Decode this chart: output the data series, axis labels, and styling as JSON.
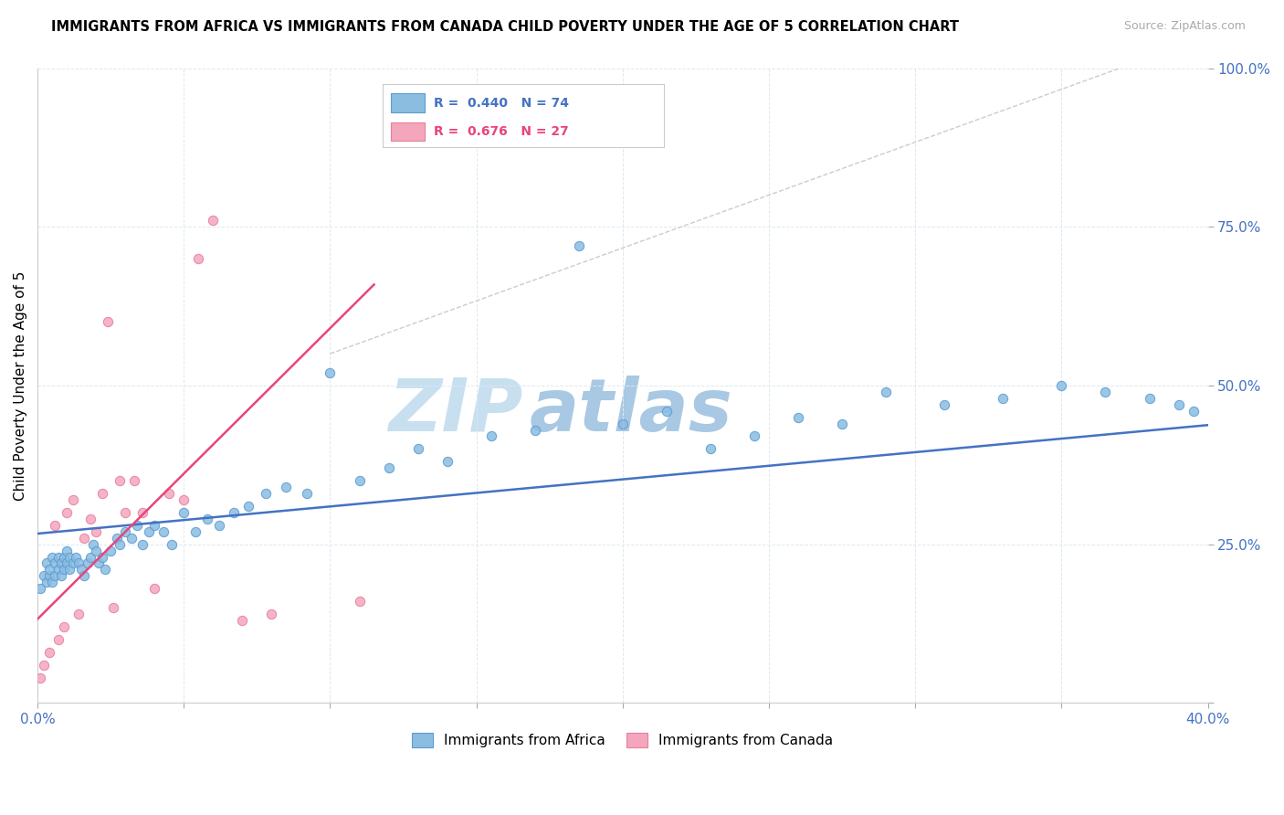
{
  "title": "IMMIGRANTS FROM AFRICA VS IMMIGRANTS FROM CANADA CHILD POVERTY UNDER THE AGE OF 5 CORRELATION CHART",
  "source": "Source: ZipAtlas.com",
  "ylabel": "Child Poverty Under the Age of 5",
  "xlim": [
    0.0,
    0.4
  ],
  "ylim": [
    0.0,
    1.0
  ],
  "xticks": [
    0.0,
    0.05,
    0.1,
    0.15,
    0.2,
    0.25,
    0.3,
    0.35,
    0.4
  ],
  "yticks": [
    0.0,
    0.25,
    0.5,
    0.75,
    1.0
  ],
  "xtick_labels": [
    "0.0%",
    "",
    "",
    "",
    "",
    "",
    "",
    "",
    "40.0%"
  ],
  "ytick_labels": [
    "",
    "25.0%",
    "50.0%",
    "75.0%",
    "100.0%"
  ],
  "africa_color": "#8bbde0",
  "canada_color": "#f4a7bc",
  "africa_edge": "#5b9bd5",
  "canada_edge": "#e87da0",
  "trendline_africa_color": "#4472c4",
  "trendline_canada_color": "#e8457a",
  "R_africa": 0.44,
  "N_africa": 74,
  "R_canada": 0.676,
  "N_canada": 27,
  "legend_africa_label": "Immigrants from Africa",
  "legend_canada_label": "Immigrants from Canada",
  "watermark_zip_color": "#c5ddf0",
  "watermark_atlas_color": "#b0cce8",
  "africa_x": [
    0.001,
    0.002,
    0.003,
    0.003,
    0.004,
    0.004,
    0.005,
    0.005,
    0.006,
    0.006,
    0.007,
    0.007,
    0.008,
    0.008,
    0.009,
    0.009,
    0.01,
    0.01,
    0.011,
    0.011,
    0.012,
    0.013,
    0.014,
    0.015,
    0.016,
    0.017,
    0.018,
    0.019,
    0.02,
    0.021,
    0.022,
    0.023,
    0.025,
    0.027,
    0.028,
    0.03,
    0.032,
    0.034,
    0.036,
    0.038,
    0.04,
    0.043,
    0.046,
    0.05,
    0.054,
    0.058,
    0.062,
    0.067,
    0.072,
    0.078,
    0.085,
    0.092,
    0.1,
    0.11,
    0.12,
    0.13,
    0.14,
    0.155,
    0.17,
    0.185,
    0.2,
    0.215,
    0.23,
    0.245,
    0.26,
    0.275,
    0.29,
    0.31,
    0.33,
    0.35,
    0.365,
    0.38,
    0.39,
    0.395
  ],
  "africa_y": [
    0.18,
    0.2,
    0.19,
    0.22,
    0.2,
    0.21,
    0.19,
    0.23,
    0.2,
    0.22,
    0.21,
    0.23,
    0.2,
    0.22,
    0.21,
    0.23,
    0.22,
    0.24,
    0.21,
    0.23,
    0.22,
    0.23,
    0.22,
    0.21,
    0.2,
    0.22,
    0.23,
    0.25,
    0.24,
    0.22,
    0.23,
    0.21,
    0.24,
    0.26,
    0.25,
    0.27,
    0.26,
    0.28,
    0.25,
    0.27,
    0.28,
    0.27,
    0.25,
    0.3,
    0.27,
    0.29,
    0.28,
    0.3,
    0.31,
    0.33,
    0.34,
    0.33,
    0.52,
    0.35,
    0.37,
    0.4,
    0.38,
    0.42,
    0.43,
    0.72,
    0.44,
    0.46,
    0.4,
    0.42,
    0.45,
    0.44,
    0.49,
    0.47,
    0.48,
    0.5,
    0.49,
    0.48,
    0.47,
    0.46
  ],
  "canada_x": [
    0.001,
    0.002,
    0.004,
    0.006,
    0.007,
    0.009,
    0.01,
    0.012,
    0.014,
    0.016,
    0.018,
    0.02,
    0.022,
    0.024,
    0.026,
    0.028,
    0.03,
    0.033,
    0.036,
    0.04,
    0.045,
    0.05,
    0.055,
    0.06,
    0.07,
    0.08,
    0.11
  ],
  "canada_y": [
    0.04,
    0.06,
    0.08,
    0.28,
    0.1,
    0.12,
    0.3,
    0.32,
    0.14,
    0.26,
    0.29,
    0.27,
    0.33,
    0.6,
    0.15,
    0.35,
    0.3,
    0.35,
    0.3,
    0.18,
    0.33,
    0.32,
    0.7,
    0.76,
    0.13,
    0.14,
    0.16
  ]
}
